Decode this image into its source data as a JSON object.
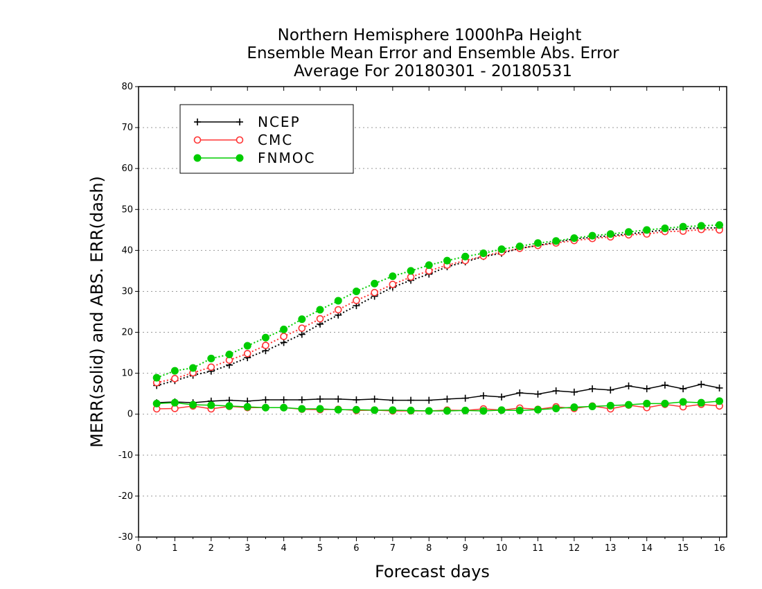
{
  "chart_data": {
    "type": "line",
    "title_lines": [
      "Northern Hemisphere 1000hPa Height",
      "Ensemble Mean Error and Ensemble Abs. Error",
      "Average For 20180301 - 20180531"
    ],
    "xlabel": "Forecast days",
    "ylabel": "MERR(solid) and ABS. ERR(dash)",
    "xlim": [
      0,
      16.2
    ],
    "ylim": [
      -30,
      80
    ],
    "x_ticks": [
      "0",
      "1",
      "2",
      "3",
      "4",
      "5",
      "6",
      "7",
      "8",
      "9",
      "10",
      "11",
      "12",
      "13",
      "14",
      "15",
      "16"
    ],
    "y_ticks": [
      "80",
      "70",
      "60",
      "50",
      "40",
      "30",
      "20",
      "10",
      "0",
      "-10",
      "-20",
      "-30"
    ],
    "grid": "horizontal-dotted",
    "legend_position": "top-left",
    "x": [
      0.5,
      1,
      1.5,
      2,
      2.5,
      3,
      3.5,
      4,
      4.5,
      5,
      5.5,
      6,
      6.5,
      7,
      7.5,
      8,
      8.5,
      9,
      9.5,
      10,
      10.5,
      11,
      11.5,
      12,
      12.5,
      13,
      13.5,
      14,
      14.5,
      15,
      15.5,
      16
    ],
    "series": [
      {
        "name": "NCEP",
        "color": "#000000",
        "marker": "plus",
        "mean_error": [
          2.8,
          3.0,
          2.8,
          3.2,
          3.4,
          3.2,
          3.5,
          3.5,
          3.5,
          3.7,
          3.7,
          3.5,
          3.7,
          3.4,
          3.4,
          3.4,
          3.7,
          3.9,
          4.5,
          4.2,
          5.2,
          4.9,
          5.7,
          5.4,
          6.2,
          5.9,
          6.9,
          6.2,
          7.1,
          6.2,
          7.3,
          6.4
        ],
        "abs_error": [
          7.0,
          8.2,
          9.5,
          10.5,
          12.0,
          13.8,
          15.5,
          17.5,
          19.5,
          22.0,
          24.2,
          26.5,
          28.8,
          31.0,
          32.7,
          34.2,
          36.0,
          37.2,
          38.5,
          39.3,
          40.5,
          41.2,
          42.0,
          42.8,
          43.2,
          43.6,
          44.0,
          44.5,
          45.0,
          45.3,
          45.5,
          45.5
        ]
      },
      {
        "name": "CMC",
        "color": "#ff3333",
        "marker": "open-circle",
        "mean_error": [
          1.3,
          1.4,
          2.0,
          1.3,
          1.9,
          1.6,
          1.6,
          1.6,
          1.2,
          1.1,
          1.2,
          0.9,
          1.0,
          0.8,
          0.8,
          0.8,
          1.0,
          0.9,
          1.3,
          1.0,
          1.5,
          1.2,
          1.8,
          1.4,
          2.0,
          1.3,
          2.2,
          1.6,
          2.4,
          1.8,
          2.4,
          2.0
        ],
        "abs_error": [
          7.7,
          8.7,
          10.1,
          11.5,
          13.2,
          14.8,
          16.8,
          19.0,
          21.0,
          23.3,
          25.5,
          27.8,
          29.7,
          31.7,
          33.5,
          35.0,
          36.4,
          37.5,
          38.6,
          39.6,
          40.5,
          41.2,
          41.8,
          42.4,
          42.9,
          43.3,
          43.8,
          44.0,
          44.6,
          44.7,
          45.1,
          45.0
        ]
      },
      {
        "name": "FNMOC",
        "color": "#00cc00",
        "marker": "filled-circle",
        "mean_error": [
          2.6,
          2.8,
          2.3,
          2.2,
          2.0,
          1.8,
          1.6,
          1.6,
          1.3,
          1.3,
          1.1,
          1.1,
          1.0,
          1.0,
          0.9,
          0.8,
          0.8,
          0.9,
          0.8,
          1.0,
          0.9,
          1.1,
          1.4,
          1.7,
          1.9,
          2.1,
          2.3,
          2.6,
          2.6,
          3.0,
          2.8,
          3.2
        ],
        "abs_error": [
          8.9,
          10.6,
          11.3,
          13.6,
          14.6,
          16.7,
          18.7,
          20.7,
          23.2,
          25.5,
          27.7,
          30.0,
          31.9,
          33.7,
          35.0,
          36.4,
          37.5,
          38.5,
          39.3,
          40.3,
          41.0,
          41.8,
          42.3,
          43.0,
          43.6,
          44.0,
          44.5,
          45.0,
          45.4,
          45.8,
          46.0,
          46.2
        ]
      }
    ]
  }
}
